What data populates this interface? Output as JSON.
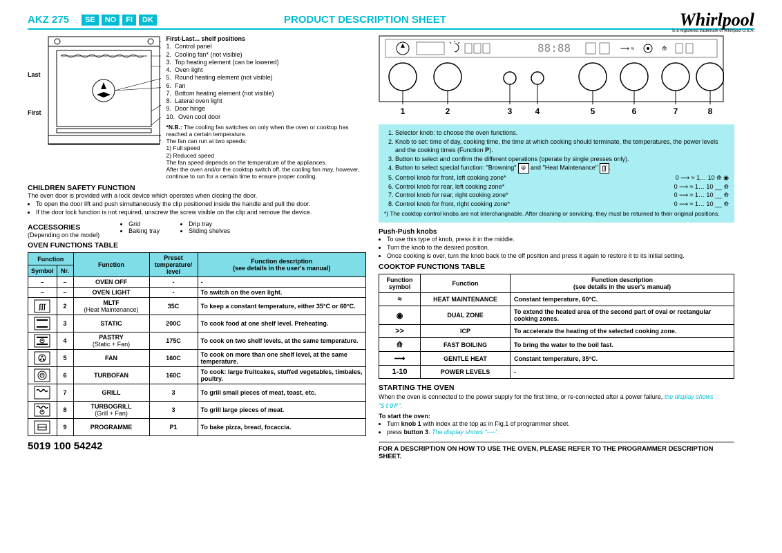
{
  "header": {
    "model": "AKZ 275",
    "langs": [
      "SE",
      "NO",
      "FI",
      "DK"
    ],
    "title": "PRODUCT DESCRIPTION SHEET",
    "brand": "Whirlpool",
    "brand_sub": "is a registered trademark of Whirlpool U.S.A."
  },
  "ovenLabels": {
    "last": "Last",
    "first": "First"
  },
  "partsHeading": "First-Last... shelf positions",
  "parts": [
    "Control panel",
    "Cooling fan* (not visible)",
    "Top heating element (can be lowered)",
    "Oven light",
    "Round heating element (not visible)",
    "Fan",
    "Bottom heating element (not visible)",
    "Lateral oven light",
    "Door hinge",
    "Oven cool door"
  ],
  "nb": {
    "label": "*N.B.:",
    "t1": "The cooling fan switches on only when the oven or cooktop has reached a certain temperature.",
    "t2": "The fan can run at two speeds:",
    "s1": "1) Full speed",
    "s2": "2) Reduced speed",
    "t3": "The fan speed depends on the temperature of the appliances.",
    "t4": "After the oven and/or the cooktop switch off, the cooling fan may, however, continue to run for a certain time to ensure proper cooling."
  },
  "safety": {
    "title": "CHILDREN SAFETY FUNCTION",
    "p": "The oven door is provided with a lock device which operates when closing the door.",
    "b1": "To open the door lift and push simultaneously the clip positioned inside the handle and pull the door.",
    "b2": "If the door lock function is not required, unscrew the screw visible on the clip and remove the device."
  },
  "acc": {
    "title": "ACCESSORIES",
    "sub": "(Depending on the model)",
    "c1": [
      "Grid",
      "Baking tray"
    ],
    "c2": [
      "Drip tray",
      "Sliding shelves"
    ]
  },
  "ovenFnTitle": "OVEN FUNCTIONS TABLE",
  "ovenHeaders": {
    "fn": "Function",
    "sym": "Symbol",
    "nr": "Nr.",
    "fn2": "Function",
    "preset": "Preset temperature/ level",
    "desc": "Function description",
    "desc2": "(see details in the user's manual)"
  },
  "ovenRows": [
    {
      "sym": "–",
      "nr": "–",
      "fn": "OVEN OFF",
      "preset": "-",
      "desc": "-"
    },
    {
      "sym": "–",
      "nr": "–",
      "fn": "OVEN LIGHT",
      "preset": "-",
      "desc": "To switch on the oven light."
    },
    {
      "sym": "mltf",
      "nr": "2",
      "fn": "MLTF",
      "fn2": "(Heat Maintenance)",
      "preset": "35C",
      "desc": "To keep a constant temperature, either 35°C or 60°C."
    },
    {
      "sym": "static",
      "nr": "3",
      "fn": "STATIC",
      "preset": "200C",
      "desc": "To cook food at one shelf level. Preheating."
    },
    {
      "sym": "pastry",
      "nr": "4",
      "fn": "PASTRY",
      "fn2": "(Static + Fan)",
      "preset": "175C",
      "desc": "To cook on two shelf levels, at the same temperature."
    },
    {
      "sym": "fan",
      "nr": "5",
      "fn": "FAN",
      "preset": "160C",
      "desc": "To cook on more than one shelf level, at the same temperature."
    },
    {
      "sym": "turbo",
      "nr": "6",
      "fn": "TURBOFAN",
      "preset": "160C",
      "desc": "To cook: large fruitcakes, stuffed vegetables, timbales, poultry."
    },
    {
      "sym": "grill",
      "nr": "7",
      "fn": "GRILL",
      "preset": "3",
      "desc": "To grill small pieces of meat, toast, etc."
    },
    {
      "sym": "tgrill",
      "nr": "8",
      "fn": "TURBOGRILL",
      "fn2": "(Grill + Fan)",
      "preset": "3",
      "desc": "To grill large pieces of meat."
    },
    {
      "sym": "prog",
      "nr": "9",
      "fn": "PROGRAMME",
      "preset": "P1",
      "desc": "To bake pizza, bread, focaccia."
    }
  ],
  "docnum": "5019 100 54242",
  "knobLabels": [
    "1",
    "2",
    "3",
    "4",
    "5",
    "6",
    "7",
    "8"
  ],
  "cyan": {
    "i1": "Selector knob: to choose the oven functions.",
    "i2a": "Knob to set: time of day, cooking time, the time at which cooking should terminate, the temperatures, the power levels and the cooking times (Function ",
    "i2b": "P",
    "i2c": ").",
    "i3": "Button to select and confirm the different operations (operate by single presses only).",
    "i4a": "Button to select special function: \"Browning\" ",
    "i4b": " and \"Heat Maintenance\" ",
    "z5": "Control knob for front, left cooking zone*",
    "z6": "Control knob for rear, left cooking zone*",
    "z7": "Control knob for rear, right cooking zone*",
    "z8": "Control knob for front, right cooking zone*",
    "zicons5": "0 ⟿ ≈ 1… 10 ⟰ ◉",
    "zicons6": "0 ⟿ ≈ 1… 10 __ ⟰",
    "zicons7": "0 ⟿ ≈ 1… 10 __ ⟰",
    "zicons8": "0 ⟿ ≈ 1… 10 __ ⟰",
    "foot": "*) The cooktop control knobs are not interchangeable. After cleaning or servicing, they must be returned to their original positions."
  },
  "push": {
    "title": "Push-Push knobs",
    "b1": "To use this type of knob, press it in the middle.",
    "b2": "Turn the knob to the desired position.",
    "b3": "Once cooking is over, turn the knob back to the off position and press it again to restore it to its initial setting."
  },
  "cookTitle": "COOKTOP FUNCTIONS TABLE",
  "cookHeaders": {
    "sym": "Function symbol",
    "fn": "Function",
    "desc": "Function description",
    "desc2": "(see details in the user's manual)"
  },
  "cookRows": [
    {
      "sym": "≈",
      "fn": "HEAT MAINTENANCE",
      "desc": "Constant temperature, 60°C."
    },
    {
      "sym": "◉",
      "fn": "DUAL ZONE",
      "desc": "To extend the heated area of the second part of oval or rectangular cooking zones."
    },
    {
      "sym": ">>",
      "fn": "ICP",
      "desc": "To accelerate the heating of the selected cooking zone."
    },
    {
      "sym": "⟰",
      "fn": "FAST BOILING",
      "desc": "To bring the water to the boil fast."
    },
    {
      "sym": "⟿",
      "fn": "GENTLE HEAT",
      "desc": "Constant temperature, 35°C."
    },
    {
      "sym": "1-10",
      "fn": "POWER LEVELS",
      "desc": "-"
    }
  ],
  "start": {
    "title": "STARTING THE OVEN",
    "p1a": "When the oven is connected to the power supply for the first time, or re-connected after a power failure, ",
    "p1b": "the display shows \"",
    "p1c": "StOP",
    "p1d": "\".",
    "sub": "To start the oven:",
    "b1a": "Turn ",
    "b1b": "knob 1",
    "b1c": " with index at the top as in Fig.1 of programmer sheet.",
    "b2a": "press ",
    "b2b": "button 3",
    "b2c": ". ",
    "b2d": "The display shows \"----\"."
  },
  "footer": "FOR A DESCRIPTION ON HOW TO USE THE OVEN, PLEASE REFER TO THE PROGRAMMER DESCRIPTION SHEET."
}
